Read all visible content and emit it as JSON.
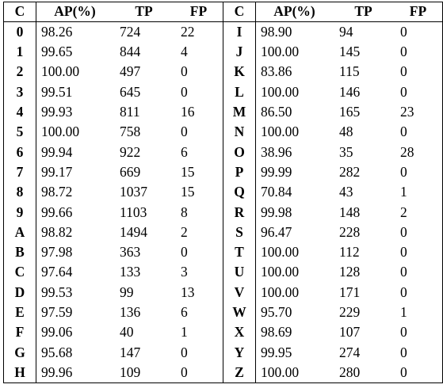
{
  "table": {
    "headers": [
      "C",
      "AP(%)",
      "TP",
      "FP",
      "C",
      "AP(%)",
      "TP",
      "FP"
    ],
    "rows": [
      [
        [
          "0",
          "98.26",
          "724",
          "22"
        ],
        [
          "I",
          "98.90",
          "94",
          "0"
        ]
      ],
      [
        [
          "1",
          "99.65",
          "844",
          "4"
        ],
        [
          "J",
          "100.00",
          "145",
          "0"
        ]
      ],
      [
        [
          "2",
          "100.00",
          "497",
          "0"
        ],
        [
          "K",
          "83.86",
          "115",
          "0"
        ]
      ],
      [
        [
          "3",
          "99.51",
          "645",
          "0"
        ],
        [
          "L",
          "100.00",
          "146",
          "0"
        ]
      ],
      [
        [
          "4",
          "99.93",
          "811",
          "16"
        ],
        [
          "M",
          "86.50",
          "165",
          "23"
        ]
      ],
      [
        [
          "5",
          "100.00",
          "758",
          "0"
        ],
        [
          "N",
          "100.00",
          "48",
          "0"
        ]
      ],
      [
        [
          "6",
          "99.94",
          "922",
          "6"
        ],
        [
          "O",
          "38.96",
          "35",
          "28"
        ]
      ],
      [
        [
          "7",
          "99.17",
          "669",
          "15"
        ],
        [
          "P",
          "99.99",
          "282",
          "0"
        ]
      ],
      [
        [
          "8",
          "98.72",
          "1037",
          "15"
        ],
        [
          "Q",
          "70.84",
          "43",
          "1"
        ]
      ],
      [
        [
          "9",
          "99.66",
          "1103",
          "8"
        ],
        [
          "R",
          "99.98",
          "148",
          "2"
        ]
      ],
      [
        [
          "A",
          "98.82",
          "1494",
          "2"
        ],
        [
          "S",
          "96.47",
          "228",
          "0"
        ]
      ],
      [
        [
          "B",
          "97.98",
          "363",
          "0"
        ],
        [
          "T",
          "100.00",
          "112",
          "0"
        ]
      ],
      [
        [
          "C",
          "97.64",
          "133",
          "3"
        ],
        [
          "U",
          "100.00",
          "128",
          "0"
        ]
      ],
      [
        [
          "D",
          "99.53",
          "99",
          "13"
        ],
        [
          "V",
          "100.00",
          "171",
          "0"
        ]
      ],
      [
        [
          "E",
          "97.59",
          "136",
          "6"
        ],
        [
          "W",
          "95.70",
          "229",
          "1"
        ]
      ],
      [
        [
          "F",
          "99.06",
          "40",
          "1"
        ],
        [
          "X",
          "98.69",
          "107",
          "0"
        ]
      ],
      [
        [
          "G",
          "95.68",
          "147",
          "0"
        ],
        [
          "Y",
          "99.95",
          "274",
          "0"
        ]
      ],
      [
        [
          "H",
          "99.96",
          "109",
          "0"
        ],
        [
          "Z",
          "100.00",
          "280",
          "0"
        ]
      ]
    ]
  }
}
